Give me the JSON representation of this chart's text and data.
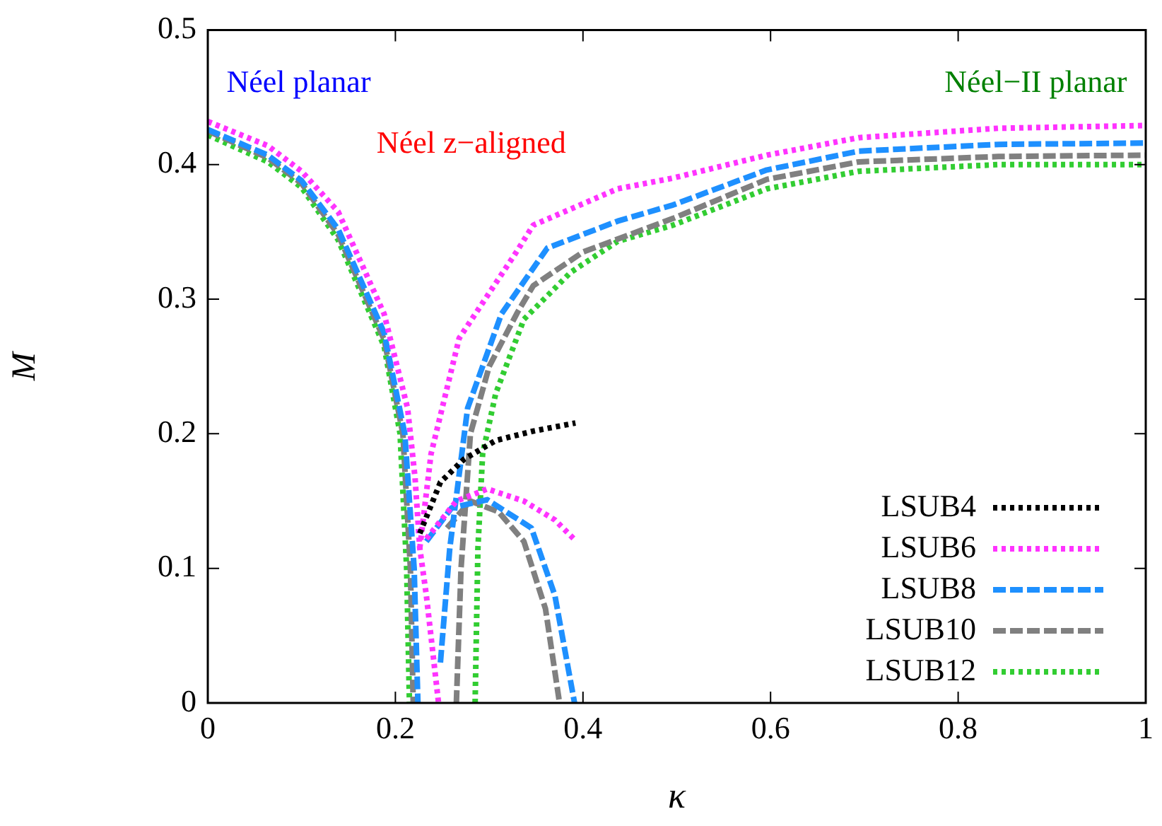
{
  "chart_data": {
    "type": "line",
    "xlabel": "κ",
    "ylabel": "M",
    "annotations": [
      "Néel planar",
      "Néel z−aligned",
      "Néel−II planar"
    ],
    "xlim": [
      0,
      1
    ],
    "xticks": [
      0,
      0.2,
      0.4,
      0.6,
      0.8,
      1
    ],
    "ylim": [
      0,
      0.5
    ],
    "yticks": [
      0,
      0.1,
      0.2,
      0.3,
      0.4,
      0.5
    ],
    "grid": false,
    "legend": "bottom right",
    "marker": "none",
    "series": [
      {
        "name": "LSUB4",
        "color": "#000000",
        "line_style": "dotted",
        "x": [
          0.226,
          0.248,
          0.273,
          0.307,
          0.347,
          0.392
        ],
        "values": [
          0.126,
          0.164,
          0.181,
          0.195,
          0.202,
          0.208
        ]
      },
      {
        "name": "LSUB6",
        "color": "#ff33ff",
        "line_style": "dotted",
        "x": [
          0,
          0.064,
          0.1,
          0.139,
          0.188,
          0.213,
          0.221,
          0.226,
          0.233,
          0.246,
          null,
          0.226,
          0.238,
          0.268,
          0.328,
          0.347,
          0.437,
          0.496,
          0.596,
          0.694,
          0.843,
          1.0,
          null,
          0.233,
          0.265,
          0.298,
          0.337,
          0.37,
          0.393
        ],
        "values": [
          0.432,
          0.414,
          0.395,
          0.365,
          0.289,
          0.219,
          0.167,
          0.115,
          0.08,
          0,
          null,
          0.115,
          0.185,
          0.271,
          0.334,
          0.355,
          0.382,
          0.39,
          0.407,
          0.42,
          0.427,
          0.429,
          null,
          0.122,
          0.15,
          0.159,
          0.15,
          0.136,
          0.12
        ]
      },
      {
        "name": "LSUB8",
        "color": "#1e90ff",
        "line_style": "dashed",
        "x": [
          0,
          0.064,
          0.1,
          0.139,
          0.188,
          0.21,
          0.22,
          0.224,
          null,
          0.248,
          0.258,
          0.277,
          0.313,
          0.362,
          0.437,
          0.496,
          0.596,
          0.694,
          0.843,
          1.0,
          null,
          0.233,
          0.26,
          0.298,
          0.345,
          0.37,
          0.391
        ],
        "values": [
          0.426,
          0.407,
          0.388,
          0.352,
          0.275,
          0.2,
          0.1,
          0,
          null,
          0.03,
          0.115,
          0.219,
          0.289,
          0.338,
          0.358,
          0.37,
          0.396,
          0.41,
          0.415,
          0.416,
          null,
          0.12,
          0.145,
          0.151,
          0.13,
          0.08,
          0
        ]
      },
      {
        "name": "LSUB10",
        "color": "#808080",
        "line_style": "dashed",
        "x": [
          0,
          0.064,
          0.1,
          0.139,
          0.188,
          0.208,
          0.216,
          0.219,
          null,
          0.265,
          0.27,
          0.28,
          0.3,
          0.33,
          0.347,
          0.4,
          0.496,
          0.596,
          0.694,
          0.843,
          1.0,
          null,
          0.255,
          0.28,
          0.31,
          0.337,
          0.36,
          0.375
        ],
        "values": [
          0.425,
          0.405,
          0.386,
          0.348,
          0.27,
          0.2,
          0.1,
          0,
          null,
          0,
          0.1,
          0.2,
          0.25,
          0.29,
          0.31,
          0.335,
          0.36,
          0.389,
          0.402,
          0.406,
          0.407,
          null,
          0.13,
          0.15,
          0.142,
          0.12,
          0.07,
          0
        ]
      },
      {
        "name": "LSUB12",
        "color": "#32cd32",
        "line_style": "dotted",
        "x": [
          0,
          0.064,
          0.1,
          0.139,
          0.188,
          0.205,
          0.212,
          0.215,
          null,
          0.285,
          0.288,
          0.293,
          0.307,
          0.337,
          0.387,
          0.437,
          0.496,
          0.596,
          0.694,
          0.843,
          1.0
        ],
        "values": [
          0.422,
          0.402,
          0.383,
          0.344,
          0.265,
          0.2,
          0.1,
          0,
          null,
          0,
          0.115,
          0.185,
          0.23,
          0.285,
          0.32,
          0.343,
          0.355,
          0.382,
          0.395,
          0.4,
          0.4
        ]
      }
    ]
  }
}
